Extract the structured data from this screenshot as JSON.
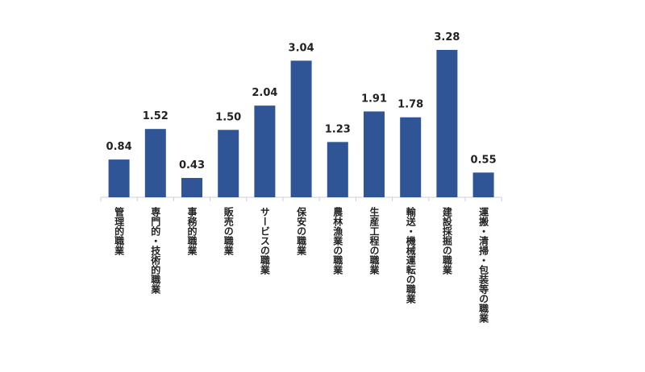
{
  "chart_data": {
    "type": "bar",
    "categories": [
      "管理的職業",
      "専門的・技術的職業",
      "事務的職業",
      "販売の職業",
      "サービスの職業",
      "保安の職業",
      "農林漁業の職業",
      "生産工程の職業",
      "輸送・機械運転の職業",
      "建設採掘の職業",
      "運搬・清掃・包装等の職業"
    ],
    "values": [
      0.84,
      1.52,
      0.43,
      1.5,
      2.04,
      3.04,
      1.23,
      1.91,
      1.78,
      3.28,
      0.55
    ],
    "value_labels": [
      "0.84",
      "1.52",
      "0.43",
      "1.50",
      "2.04",
      "3.04",
      "1.23",
      "1.91",
      "1.78",
      "3.28",
      "0.55"
    ],
    "color": "#2f5597"
  }
}
